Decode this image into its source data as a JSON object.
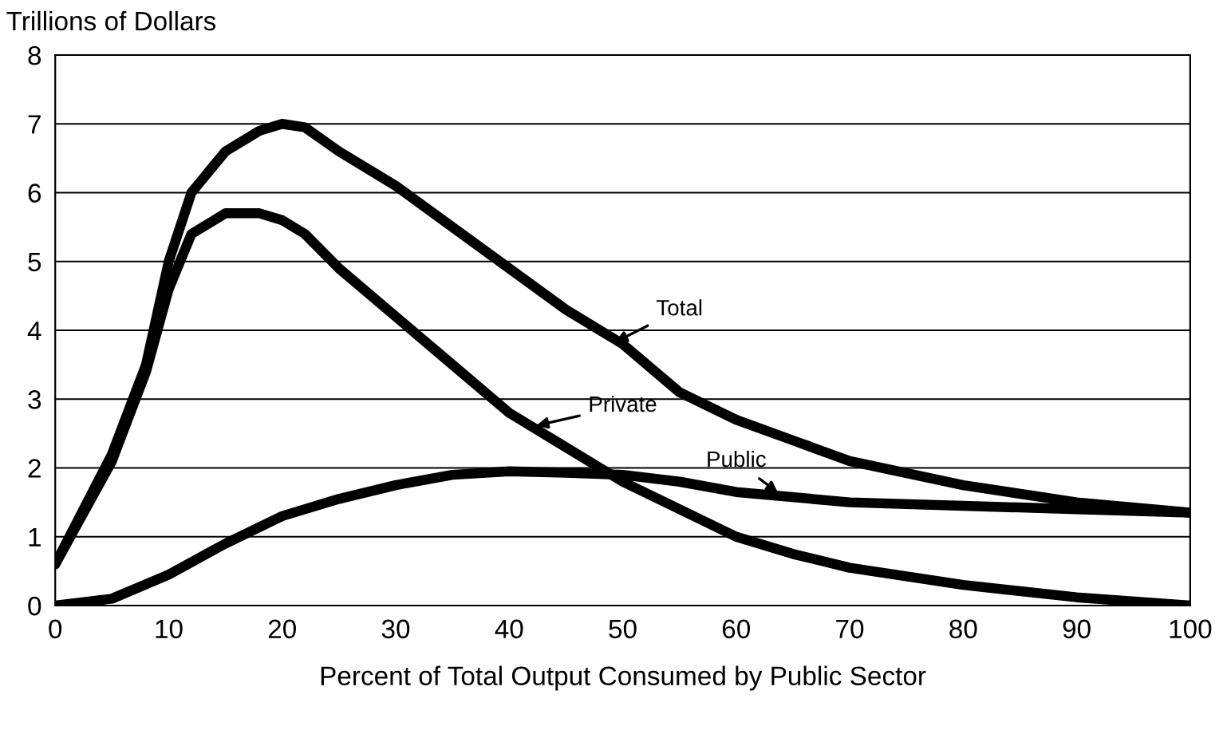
{
  "chart_data": {
    "type": "line",
    "ylabel": "Trillions of Dollars",
    "xlabel": "Percent of Total Output Consumed by Public Sector",
    "xlim": [
      0,
      100
    ],
    "xticks": [
      0,
      10,
      20,
      30,
      40,
      50,
      60,
      70,
      80,
      90,
      100
    ],
    "ylim": [
      0,
      8
    ],
    "yticks": [
      0,
      1,
      2,
      3,
      4,
      5,
      6,
      7,
      8
    ],
    "grid": "y",
    "legend": false,
    "marker": "none",
    "line_style": "solid",
    "series": [
      {
        "color": "#000000",
        "x": [
          0,
          5,
          8,
          10,
          12,
          15,
          18,
          20,
          22,
          25,
          30,
          35,
          40,
          45,
          50,
          55,
          60,
          65,
          70,
          80,
          90,
          100
        ],
        "values": [
          0.6,
          2.2,
          3.5,
          5.0,
          6.0,
          6.6,
          6.9,
          7.0,
          6.95,
          6.6,
          6.1,
          5.5,
          4.9,
          4.3,
          3.8,
          3.1,
          2.7,
          2.4,
          2.1,
          1.75,
          1.5,
          1.35
        ]
      },
      {
        "color": "#000000",
        "x": [
          0,
          5,
          8,
          10,
          12,
          15,
          18,
          20,
          22,
          25,
          30,
          35,
          40,
          45,
          50,
          55,
          60,
          65,
          70,
          80,
          90,
          100
        ],
        "values": [
          0.6,
          2.1,
          3.4,
          4.6,
          5.4,
          5.7,
          5.7,
          5.6,
          5.4,
          4.9,
          4.2,
          3.5,
          2.8,
          2.3,
          1.8,
          1.4,
          1.0,
          0.75,
          0.55,
          0.3,
          0.12,
          0.0
        ]
      },
      {
        "color": "#000000",
        "x": [
          0,
          5,
          10,
          15,
          20,
          25,
          30,
          35,
          40,
          45,
          50,
          55,
          60,
          70,
          80,
          90,
          100
        ],
        "values": [
          0.0,
          0.1,
          0.45,
          0.9,
          1.3,
          1.55,
          1.75,
          1.9,
          1.95,
          1.93,
          1.9,
          1.8,
          1.65,
          1.5,
          1.45,
          1.4,
          1.35
        ]
      }
    ],
    "annotations": [
      {
        "text": "Total",
        "x": 49,
        "y": 3.8
      },
      {
        "text": "Private",
        "x": 42,
        "y": 2.6
      },
      {
        "text": "Public",
        "x": 64,
        "y": 1.6
      }
    ]
  }
}
